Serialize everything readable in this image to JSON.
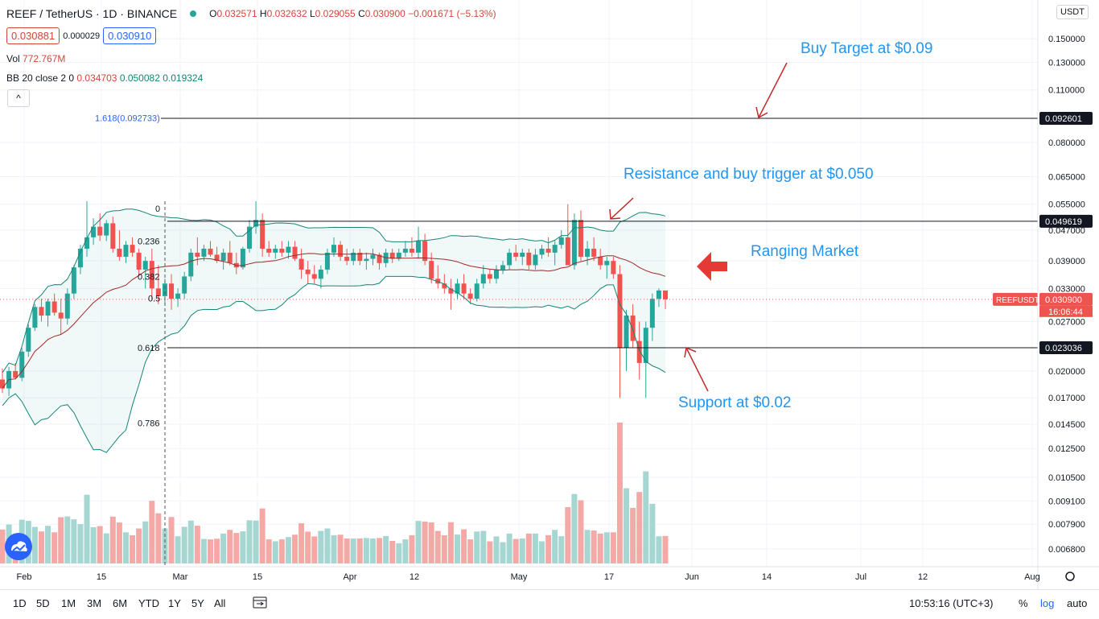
{
  "header": {
    "title": "REEF / TetherUS · 1D · BINANCE",
    "ohlc": {
      "o_label": "O",
      "o": "0.032571",
      "h_label": "H",
      "h": "0.032632",
      "l_label": "L",
      "l": "0.029055",
      "c_label": "C",
      "c": "0.030900",
      "change": "−0.001671 (−5.13%)"
    },
    "sell_price": "0.030881",
    "spread": "0.000029",
    "buy_price": "0.030910",
    "vol_label": "Vol",
    "vol_value": "772.767M",
    "bb_label": "BB 20 close 2 0",
    "bb_basis": "0.034703",
    "bb_upper": "0.050082",
    "bb_lower": "0.019324",
    "collapse": "^",
    "currency": "USDT"
  },
  "annotations": {
    "buy_target": "Buy Target at $0.09",
    "resistance": "Resistance and buy trigger at $0.050",
    "ranging": "Ranging Market",
    "support": "Support at $0.02"
  },
  "bottom": {
    "timeframes": [
      "1D",
      "5D",
      "1M",
      "3M",
      "6M",
      "YTD",
      "1Y",
      "5Y",
      "All"
    ],
    "clock": "10:53:16 (UTC+3)",
    "pct": "%",
    "log": "log",
    "auto": "auto"
  },
  "colors": {
    "up": "#26a69a",
    "down": "#ef5350",
    "bb_line": "#138575",
    "bb_basis": "#9c2a2a",
    "annotation": "#2196f3",
    "arrow": "#c62828"
  },
  "chart_data": {
    "type": "candlestick",
    "symbol": "REEFUSDT",
    "scale": "log",
    "y_ticks": [
      "0.150000",
      "0.130000",
      "0.110000",
      "0.080000",
      "0.065000",
      "0.055000",
      "0.047000",
      "0.039000",
      "0.033000",
      "0.027000",
      "0.020000",
      "0.017000",
      "0.014500",
      "0.012500",
      "0.010500",
      "0.009100",
      "0.007900",
      "0.006800"
    ],
    "x_ticks": [
      "Feb",
      "15",
      "Mar",
      "15",
      "Apr",
      "12",
      "May",
      "17",
      "Jun",
      "14",
      "Jul",
      "12",
      "Aug"
    ],
    "price_tags": [
      {
        "label": "0.092601",
        "value": 0.092601,
        "style": "dark"
      },
      {
        "label": "0.049619",
        "value": 0.049619,
        "style": "dark"
      },
      {
        "label": "0.030900",
        "value": 0.0309,
        "style": "red",
        "name": "REEFUSDT",
        "countdown": "16:06:44"
      },
      {
        "label": "0.023036",
        "value": 0.023036,
        "style": "dark"
      }
    ],
    "horizontal_lines": [
      0.092601,
      0.049619,
      0.023036
    ],
    "fibonacci": [
      {
        "label": "1.618(0.092733)",
        "value": 0.092733
      },
      {
        "label": "0",
        "value": 0.0536
      },
      {
        "label": "0.236",
        "value": 0.044
      },
      {
        "label": "0.382",
        "value": 0.0355
      },
      {
        "label": "0.5",
        "value": 0.0311
      },
      {
        "label": "0.618",
        "value": 0.023036
      },
      {
        "label": "0.786",
        "value": 0.0146
      }
    ],
    "candles_ohlc_approx": [
      [
        0.019,
        0.0203,
        0.0175,
        0.018
      ],
      [
        0.018,
        0.0205,
        0.0172,
        0.02
      ],
      [
        0.02,
        0.021,
        0.019,
        0.0192
      ],
      [
        0.0192,
        0.023,
        0.0188,
        0.0225
      ],
      [
        0.0225,
        0.0265,
        0.0218,
        0.026
      ],
      [
        0.026,
        0.03,
        0.0255,
        0.0295
      ],
      [
        0.0295,
        0.031,
        0.027,
        0.028
      ],
      [
        0.028,
        0.031,
        0.0262,
        0.0305
      ],
      [
        0.0305,
        0.032,
        0.028,
        0.0285
      ],
      [
        0.0285,
        0.031,
        0.025,
        0.0275
      ],
      [
        0.0275,
        0.033,
        0.0265,
        0.032
      ],
      [
        0.032,
        0.038,
        0.031,
        0.0375
      ],
      [
        0.0375,
        0.043,
        0.036,
        0.042
      ],
      [
        0.042,
        0.056,
        0.04,
        0.045
      ],
      [
        0.045,
        0.0505,
        0.043,
        0.048
      ],
      [
        0.048,
        0.052,
        0.044,
        0.0455
      ],
      [
        0.0455,
        0.05,
        0.044,
        0.049
      ],
      [
        0.049,
        0.051,
        0.041,
        0.042
      ],
      [
        0.042,
        0.047,
        0.039,
        0.04
      ],
      [
        0.04,
        0.044,
        0.0385,
        0.043
      ],
      [
        0.043,
        0.045,
        0.04,
        0.041
      ],
      [
        0.041,
        0.042,
        0.036,
        0.037
      ],
      [
        0.037,
        0.04,
        0.033,
        0.039
      ],
      [
        0.039,
        0.042,
        0.031,
        0.033
      ],
      [
        0.033,
        0.038,
        0.03,
        0.0315
      ],
      [
        0.0315,
        0.035,
        0.03,
        0.034
      ],
      [
        0.034,
        0.036,
        0.029,
        0.031
      ],
      [
        0.031,
        0.033,
        0.0295,
        0.032
      ],
      [
        0.032,
        0.0365,
        0.031,
        0.0355
      ],
      [
        0.0355,
        0.042,
        0.0345,
        0.041
      ],
      [
        0.041,
        0.045,
        0.038,
        0.04
      ],
      [
        0.04,
        0.043,
        0.039,
        0.042
      ],
      [
        0.042,
        0.044,
        0.04,
        0.0405
      ],
      [
        0.0405,
        0.0425,
        0.0385,
        0.039
      ],
      [
        0.039,
        0.042,
        0.037,
        0.041
      ],
      [
        0.041,
        0.044,
        0.038,
        0.0385
      ],
      [
        0.0385,
        0.041,
        0.036,
        0.0375
      ],
      [
        0.0375,
        0.0425,
        0.037,
        0.042
      ],
      [
        0.042,
        0.05,
        0.041,
        0.048
      ],
      [
        0.048,
        0.056,
        0.046,
        0.05
      ],
      [
        0.05,
        0.052,
        0.04,
        0.042
      ],
      [
        0.042,
        0.044,
        0.04,
        0.041
      ],
      [
        0.041,
        0.043,
        0.0395,
        0.042
      ],
      [
        0.042,
        0.044,
        0.04,
        0.041
      ],
      [
        0.041,
        0.044,
        0.0395,
        0.0425
      ],
      [
        0.0425,
        0.044,
        0.039,
        0.0395
      ],
      [
        0.0395,
        0.042,
        0.035,
        0.037
      ],
      [
        0.037,
        0.039,
        0.034,
        0.036
      ],
      [
        0.036,
        0.038,
        0.034,
        0.035
      ],
      [
        0.035,
        0.038,
        0.033,
        0.037
      ],
      [
        0.037,
        0.042,
        0.036,
        0.041
      ],
      [
        0.041,
        0.045,
        0.04,
        0.043
      ],
      [
        0.043,
        0.044,
        0.039,
        0.04
      ],
      [
        0.04,
        0.042,
        0.038,
        0.039
      ],
      [
        0.039,
        0.042,
        0.038,
        0.041
      ],
      [
        0.041,
        0.042,
        0.038,
        0.039
      ],
      [
        0.039,
        0.041,
        0.037,
        0.0395
      ],
      [
        0.0395,
        0.042,
        0.038,
        0.0405
      ],
      [
        0.0405,
        0.041,
        0.037,
        0.0385
      ],
      [
        0.0385,
        0.042,
        0.0375,
        0.041
      ],
      [
        0.041,
        0.042,
        0.0385,
        0.0395
      ],
      [
        0.0395,
        0.042,
        0.039,
        0.041
      ],
      [
        0.041,
        0.044,
        0.04,
        0.042
      ],
      [
        0.042,
        0.045,
        0.04,
        0.041
      ],
      [
        0.041,
        0.048,
        0.0395,
        0.044
      ],
      [
        0.044,
        0.046,
        0.038,
        0.039
      ],
      [
        0.039,
        0.041,
        0.034,
        0.035
      ],
      [
        0.035,
        0.038,
        0.033,
        0.034
      ],
      [
        0.034,
        0.036,
        0.032,
        0.033
      ],
      [
        0.033,
        0.035,
        0.029,
        0.032
      ],
      [
        0.032,
        0.035,
        0.031,
        0.034
      ],
      [
        0.034,
        0.036,
        0.031,
        0.032
      ],
      [
        0.032,
        0.033,
        0.03,
        0.031
      ],
      [
        0.031,
        0.035,
        0.0305,
        0.034
      ],
      [
        0.034,
        0.038,
        0.033,
        0.036
      ],
      [
        0.036,
        0.037,
        0.034,
        0.035
      ],
      [
        0.035,
        0.038,
        0.034,
        0.037
      ],
      [
        0.037,
        0.039,
        0.036,
        0.038
      ],
      [
        0.038,
        0.042,
        0.037,
        0.041
      ],
      [
        0.041,
        0.043,
        0.039,
        0.04
      ],
      [
        0.04,
        0.042,
        0.038,
        0.041
      ],
      [
        0.041,
        0.042,
        0.037,
        0.038
      ],
      [
        0.038,
        0.042,
        0.037,
        0.0405
      ],
      [
        0.0405,
        0.043,
        0.0395,
        0.042
      ],
      [
        0.042,
        0.045,
        0.04,
        0.041
      ],
      [
        0.041,
        0.044,
        0.038,
        0.043
      ],
      [
        0.043,
        0.047,
        0.042,
        0.045
      ],
      [
        0.045,
        0.055,
        0.042,
        0.038
      ],
      [
        0.038,
        0.052,
        0.037,
        0.05
      ],
      [
        0.05,
        0.053,
        0.039,
        0.04
      ],
      [
        0.04,
        0.044,
        0.038,
        0.042
      ],
      [
        0.042,
        0.045,
        0.039,
        0.04
      ],
      [
        0.04,
        0.042,
        0.037,
        0.038
      ],
      [
        0.038,
        0.04,
        0.035,
        0.039
      ],
      [
        0.039,
        0.04,
        0.035,
        0.036
      ],
      [
        0.036,
        0.038,
        0.017,
        0.023
      ],
      [
        0.023,
        0.029,
        0.02,
        0.028
      ],
      [
        0.028,
        0.03,
        0.023,
        0.024
      ],
      [
        0.024,
        0.027,
        0.019,
        0.021
      ],
      [
        0.021,
        0.027,
        0.017,
        0.026
      ],
      [
        0.026,
        0.032,
        0.024,
        0.031
      ],
      [
        0.031,
        0.033,
        0.0295,
        0.0326
      ],
      [
        0.0326,
        0.0326,
        0.0291,
        0.0309
      ]
    ]
  }
}
